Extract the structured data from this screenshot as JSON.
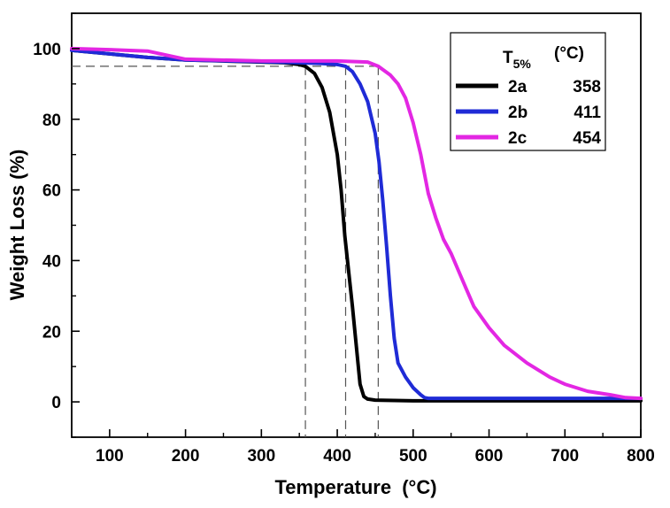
{
  "chart_data": {
    "type": "line",
    "xlabel": "Temperature",
    "xlabel_unit": "(°C)",
    "ylabel": "Weight Loss (%)",
    "xlim": [
      50,
      800
    ],
    "ylim": [
      -10,
      110
    ],
    "xticks": [
      100,
      200,
      300,
      400,
      500,
      600,
      700,
      800
    ],
    "yticks": [
      0,
      20,
      40,
      60,
      80,
      100
    ],
    "legend": {
      "placement": "top-right",
      "header_label": "T",
      "header_sub": "5%",
      "header_unit": "(°C)"
    },
    "reference_line_y": 95,
    "series": [
      {
        "name": "2a",
        "t5": "358",
        "color": "#000000",
        "x": [
          50,
          100,
          150,
          200,
          250,
          300,
          330,
          350,
          358,
          370,
          380,
          390,
          400,
          405,
          410,
          415,
          420,
          425,
          430,
          435,
          440,
          450,
          500,
          600,
          800
        ],
        "y": [
          99.5,
          98.5,
          97.5,
          96.8,
          96.5,
          96.2,
          96.0,
          95.5,
          95.0,
          93.0,
          89.0,
          82.0,
          70.0,
          60.0,
          47.0,
          37.0,
          27.0,
          16.0,
          5.0,
          1.5,
          0.8,
          0.5,
          0.3,
          0.3,
          0.3
        ]
      },
      {
        "name": "2b",
        "t5": "411",
        "color": "#1f2bd6",
        "x": [
          50,
          100,
          150,
          200,
          300,
          350,
          380,
          400,
          411,
          420,
          430,
          440,
          450,
          455,
          460,
          465,
          470,
          475,
          480,
          490,
          500,
          510,
          515,
          520,
          800
        ],
        "y": [
          99.5,
          98.5,
          97.5,
          96.8,
          96.3,
          96.0,
          95.8,
          95.5,
          95.0,
          93.5,
          90.0,
          85.0,
          76.0,
          68.0,
          57.0,
          44.0,
          30.0,
          18.0,
          11.0,
          7.0,
          4.0,
          2.0,
          1.2,
          1.0,
          1.0
        ]
      },
      {
        "name": "2c",
        "t5": "454",
        "color": "#e327e3",
        "x": [
          50,
          100,
          150,
          200,
          300,
          400,
          440,
          454,
          470,
          480,
          490,
          500,
          510,
          520,
          530,
          540,
          550,
          560,
          570,
          580,
          600,
          620,
          650,
          680,
          700,
          730,
          760,
          780,
          800
        ],
        "y": [
          100,
          99.7,
          99.3,
          97.0,
          96.5,
          96.5,
          96.2,
          95.0,
          92.5,
          90.0,
          86.0,
          79.0,
          70.0,
          59.0,
          52.0,
          46.0,
          42.0,
          37.0,
          32.0,
          27.0,
          21.0,
          16.0,
          11.0,
          7.0,
          5.0,
          3.0,
          2.0,
          1.2,
          1.0
        ]
      }
    ]
  }
}
